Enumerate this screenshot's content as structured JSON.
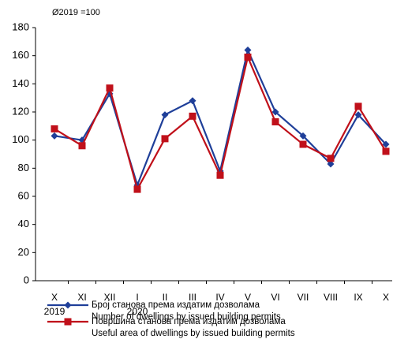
{
  "chart_data": {
    "type": "line",
    "subtitle": "Ø2019 =100",
    "categories": [
      "X",
      "XI",
      "XII",
      "I",
      "II",
      "III",
      "IV",
      "V",
      "VI",
      "VII",
      "VIII",
      "IX",
      "X"
    ],
    "year_labels": [
      "2019",
      null,
      null,
      "2020",
      null,
      null,
      null,
      null,
      null,
      null,
      null,
      null,
      null
    ],
    "series": [
      {
        "name": [
          "Број станова према издатим дозволама",
          "Number of dwellings by issued building permits"
        ],
        "color": "#1f3f99",
        "marker": "diamond",
        "values": [
          103,
          100,
          133,
          68,
          118,
          128,
          78,
          164,
          120,
          103,
          83,
          118,
          97
        ]
      },
      {
        "name": [
          "Површина станова према издатим дозволама",
          "Useful area of dwellings by issued building permits"
        ],
        "color": "#c0101a",
        "marker": "square",
        "values": [
          108,
          96,
          137,
          65,
          101,
          117,
          75,
          159,
          113,
          97,
          87,
          124,
          92
        ]
      }
    ],
    "ylim": [
      0,
      180
    ],
    "yticks": [
      0,
      20,
      40,
      60,
      80,
      100,
      120,
      140,
      160,
      180
    ],
    "grid": false
  }
}
